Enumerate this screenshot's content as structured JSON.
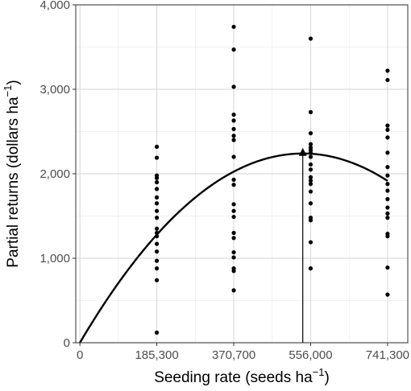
{
  "chart_data": {
    "type": "scatter",
    "xlabel": "Seeding rate (seeds ha",
    "xlabel_sup": "−1",
    "xlabel_end": ")",
    "ylabel": "Partial returns (dollars ha",
    "ylabel_sup": "−1",
    "ylabel_end": ")",
    "xlim": [
      -10000,
      790000
    ],
    "ylim": [
      0,
      4000
    ],
    "x_ticks": [
      {
        "value": 0,
        "label": "0"
      },
      {
        "value": 185300,
        "label": "185,300"
      },
      {
        "value": 370700,
        "label": "370,700"
      },
      {
        "value": 556000,
        "label": "556,000"
      },
      {
        "value": 741300,
        "label": "741,300"
      }
    ],
    "y_ticks": [
      {
        "value": 0,
        "label": "0"
      },
      {
        "value": 1000,
        "label": "1,000"
      },
      {
        "value": 2000,
        "label": "2,000"
      },
      {
        "value": 3000,
        "label": "3,000"
      },
      {
        "value": 4000,
        "label": "4,000"
      }
    ],
    "grid": true,
    "points": [
      [
        185300,
        2320
      ],
      [
        185300,
        2190
      ],
      [
        185300,
        1980
      ],
      [
        185300,
        1950
      ],
      [
        185300,
        1900
      ],
      [
        185300,
        1820
      ],
      [
        185300,
        1720
      ],
      [
        185300,
        1650
      ],
      [
        185300,
        1560
      ],
      [
        185300,
        1480
      ],
      [
        185300,
        1350
      ],
      [
        185300,
        1300
      ],
      [
        185300,
        1260
      ],
      [
        185300,
        1170
      ],
      [
        185300,
        1080
      ],
      [
        185300,
        970
      ],
      [
        185300,
        880
      ],
      [
        185300,
        740
      ],
      [
        185300,
        120
      ],
      [
        370700,
        3740
      ],
      [
        370700,
        3470
      ],
      [
        370700,
        3030
      ],
      [
        370700,
        2700
      ],
      [
        370700,
        2630
      ],
      [
        370700,
        2530
      ],
      [
        370700,
        2450
      ],
      [
        370700,
        2400
      ],
      [
        370700,
        2200
      ],
      [
        370700,
        1930
      ],
      [
        370700,
        1870
      ],
      [
        370700,
        1640
      ],
      [
        370700,
        1560
      ],
      [
        370700,
        1490
      ],
      [
        370700,
        1300
      ],
      [
        370700,
        1240
      ],
      [
        370700,
        1070
      ],
      [
        370700,
        1010
      ],
      [
        370700,
        880
      ],
      [
        370700,
        850
      ],
      [
        370700,
        620
      ],
      [
        556000,
        3600
      ],
      [
        556000,
        2730
      ],
      [
        556000,
        2480
      ],
      [
        556000,
        2350
      ],
      [
        556000,
        2310
      ],
      [
        556000,
        2280
      ],
      [
        556000,
        2250
      ],
      [
        556000,
        2200
      ],
      [
        556000,
        2110
      ],
      [
        556000,
        2050
      ],
      [
        556000,
        1960
      ],
      [
        556000,
        1920
      ],
      [
        556000,
        1880
      ],
      [
        556000,
        1790
      ],
      [
        556000,
        1650
      ],
      [
        556000,
        1480
      ],
      [
        556000,
        1450
      ],
      [
        556000,
        1190
      ],
      [
        556000,
        880
      ],
      [
        741300,
        3220
      ],
      [
        741300,
        3110
      ],
      [
        741300,
        2570
      ],
      [
        741300,
        2520
      ],
      [
        741300,
        2430
      ],
      [
        741300,
        2250
      ],
      [
        741300,
        2080
      ],
      [
        741300,
        1980
      ],
      [
        741300,
        1880
      ],
      [
        741300,
        1800
      ],
      [
        741300,
        1700
      ],
      [
        741300,
        1600
      ],
      [
        741300,
        1530
      ],
      [
        741300,
        1480
      ],
      [
        741300,
        1290
      ],
      [
        741300,
        1260
      ],
      [
        741300,
        890
      ],
      [
        741300,
        570
      ]
    ],
    "fit_curve": {
      "type": "quadratic",
      "vertex_x": 537000,
      "vertex_y": 2240,
      "x_start": 0,
      "x_end": 741300
    },
    "annotation": {
      "type": "arrow",
      "x": 537000,
      "y_from": 0,
      "y_to": 2240
    }
  }
}
